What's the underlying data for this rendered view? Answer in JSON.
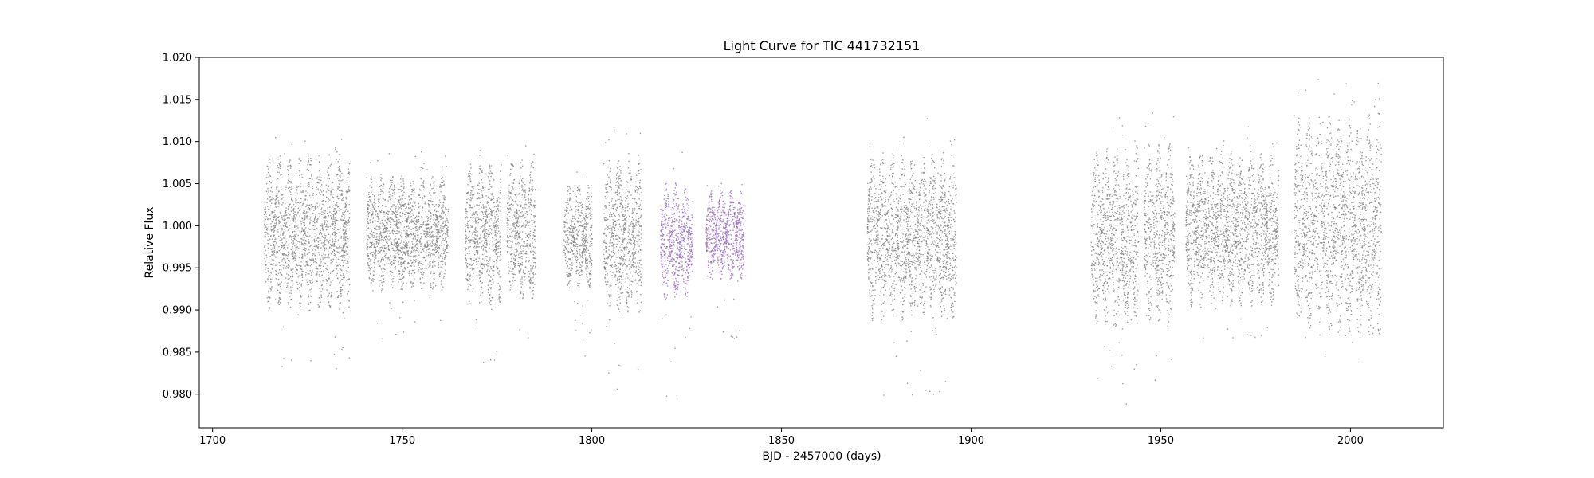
{
  "chart_data": {
    "type": "scatter",
    "title": "Light Curve for TIC 441732151",
    "xlabel": "BJD - 2457000 (days)",
    "ylabel": "Relative Flux",
    "xlim": [
      1696.5,
      2024.5
    ],
    "ylim": [
      0.976,
      1.02
    ],
    "xticks": [
      1700,
      1750,
      1800,
      1850,
      1900,
      1950,
      2000
    ],
    "xtick_labels": [
      "1700",
      "1750",
      "1800",
      "1850",
      "1900",
      "1950",
      "2000"
    ],
    "yticks": [
      0.98,
      0.985,
      0.99,
      0.995,
      1.0,
      1.005,
      1.01,
      1.015,
      1.02
    ],
    "ytick_labels": [
      "0.980",
      "0.985",
      "0.990",
      "0.995",
      "1.000",
      "1.005",
      "1.010",
      "1.015",
      "1.020"
    ],
    "grid": false,
    "legend": "none",
    "series": [
      {
        "color": "#7f7f7f",
        "segments": [
          {
            "x": [
              1713.5,
              1736.0
            ],
            "y_min": 0.983,
            "y_max": 1.012
          },
          {
            "x": [
              1740.5,
              1762.0
            ],
            "y_min": 0.986,
            "y_max": 1.009
          },
          {
            "x": [
              1766.5,
              1776.0
            ],
            "y_min": 0.983,
            "y_max": 1.011
          },
          {
            "x": [
              1777.5,
              1785.0
            ],
            "y_min": 0.986,
            "y_max": 1.011
          },
          {
            "x": [
              1792.5,
              1800.0
            ],
            "y_min": 0.984,
            "y_max": 1.008
          },
          {
            "x": [
              1803.0,
              1813.0
            ],
            "y_min": 0.979,
            "y_max": 1.012
          },
          {
            "x": [
              1872.5,
              1896.0
            ],
            "y_min": 0.979,
            "y_max": 1.013
          },
          {
            "x": [
              1931.5,
              1944.0
            ],
            "y_min": 0.978,
            "y_max": 1.014
          },
          {
            "x": [
              1945.5,
              1953.5
            ],
            "y_min": 0.98,
            "y_max": 1.014
          },
          {
            "x": [
              1956.5,
              1981.0
            ],
            "y_min": 0.986,
            "y_max": 1.012
          },
          {
            "x": [
              1985.0,
              2008.0
            ],
            "y_min": 0.983,
            "y_max": 1.018
          }
        ]
      },
      {
        "color": "#9467bd",
        "segments": [
          {
            "x": [
              1818.0,
              1826.5
            ],
            "y_min": 0.979,
            "y_max": 1.009
          },
          {
            "x": [
              1830.0,
              1840.0
            ],
            "y_min": 0.986,
            "y_max": 1.007
          }
        ]
      }
    ]
  }
}
